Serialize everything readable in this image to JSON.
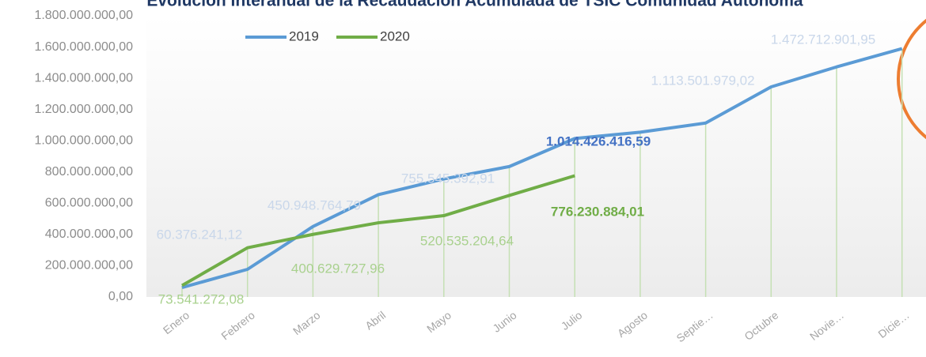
{
  "chart_data": {
    "type": "line",
    "title": "Evolución Interanual de la Recaudación Acumulada de TSIC Comunidad Autónoma",
    "categories": [
      "Enero",
      "Febrero",
      "Marzo",
      "Abril",
      "Mayo",
      "Junio",
      "Julio",
      "Agosto",
      "Septie…",
      "Octubre",
      "Novie…",
      "Dicie…"
    ],
    "series": [
      {
        "name": "2019",
        "color": "#5b9bd5",
        "values": [
          60376241.12,
          177000000,
          450948764.79,
          655000000,
          755545392.91,
          835000000,
          1014426416.59,
          1055000000,
          1113501979.02,
          1345000000,
          1472712901.95,
          1590000000
        ],
        "value_labels": [
          "60.376.241,12",
          null,
          "450.948.764,79",
          null,
          "755.545.392,91",
          null,
          "1.014.426.416,59",
          null,
          "1.113.501.979,02",
          null,
          "1.472.712.901,95",
          null
        ]
      },
      {
        "name": "2020",
        "color": "#70ad47",
        "values": [
          73541272.08,
          315000000,
          400629727.96,
          475000000,
          520535204.64,
          650000000,
          776230884.01,
          null,
          null,
          null,
          null,
          null
        ],
        "value_labels": [
          "73.541.272,08",
          null,
          "400.629.727,96",
          null,
          "520.535.204,64",
          null,
          "776.230.884,01",
          null,
          null,
          null,
          null,
          null
        ]
      }
    ],
    "ylim": [
      0,
      1800000000
    ],
    "yticks": [
      {
        "value": 0,
        "label": "0,00"
      },
      {
        "value": 200000000,
        "label": "200.000.000,00"
      },
      {
        "value": 400000000,
        "label": "400.000.000,00"
      },
      {
        "value": 600000000,
        "label": "600.000.000,00"
      },
      {
        "value": 800000000,
        "label": "800.000.000,00"
      },
      {
        "value": 1000000000,
        "label": "1.000.000.000,00"
      },
      {
        "value": 1200000000,
        "label": "1.200.000.000,00"
      },
      {
        "value": 1400000000,
        "label": "1.400.000.000,00"
      },
      {
        "value": 1600000000,
        "label": "1.600.000.000,00"
      },
      {
        "value": 1800000000,
        "label": "1.800.000.000,00"
      }
    ],
    "legend": "top"
  }
}
